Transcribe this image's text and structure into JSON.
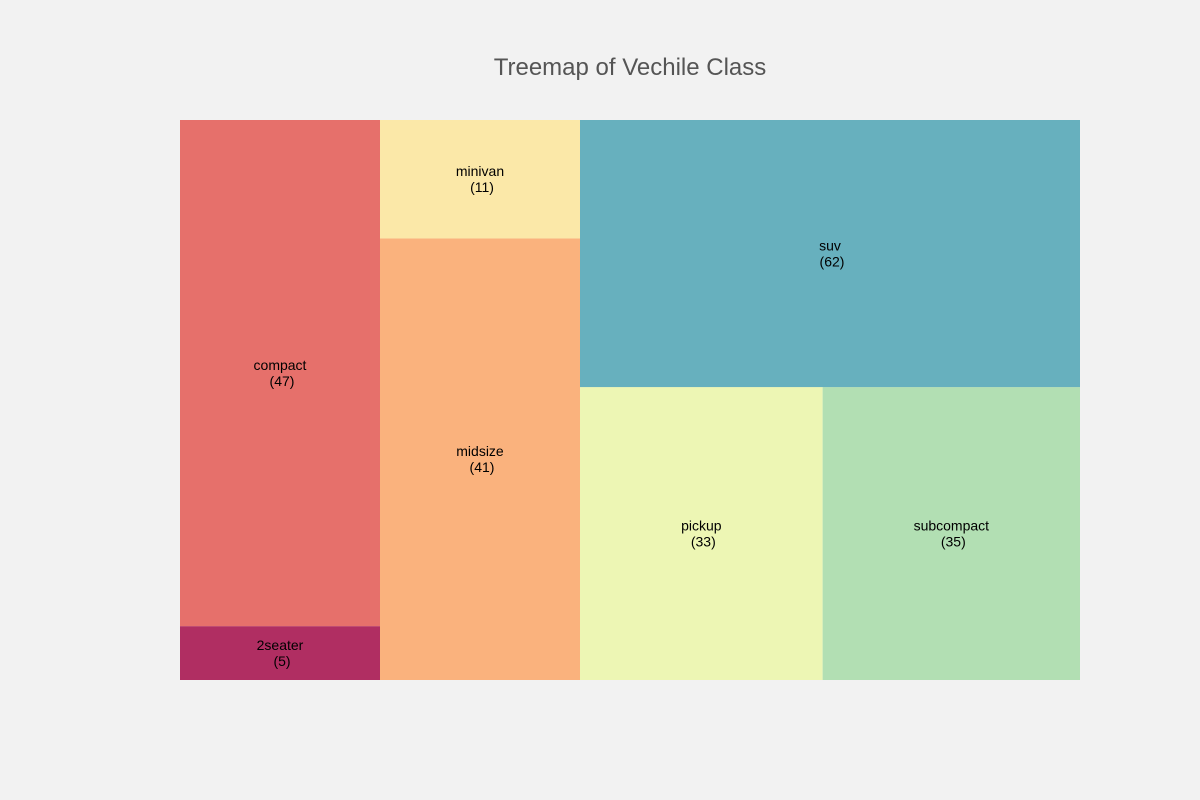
{
  "chart_data": {
    "type": "treemap",
    "title": "Treemap of Vechile Class",
    "background": "#f2f2f2",
    "items": [
      {
        "label": "2seater",
        "value": 5,
        "value_text": "(5)",
        "color": "#b02e62"
      },
      {
        "label": "compact",
        "value": 47,
        "value_text": "(47)",
        "color": "#e6706b"
      },
      {
        "label": "midsize",
        "value": 41,
        "value_text": "(41)",
        "color": "#fab27d"
      },
      {
        "label": "minivan",
        "value": 11,
        "value_text": "(11)",
        "color": "#fbe8a8"
      },
      {
        "label": "pickup",
        "value": 33,
        "value_text": "(33)",
        "color": "#edf6b4"
      },
      {
        "label": "subcompact",
        "value": 35,
        "value_text": "(35)",
        "color": "#b2dfb3"
      },
      {
        "label": "suv",
        "value": 62,
        "value_text": "(62)",
        "color": "#67b0be"
      }
    ]
  }
}
